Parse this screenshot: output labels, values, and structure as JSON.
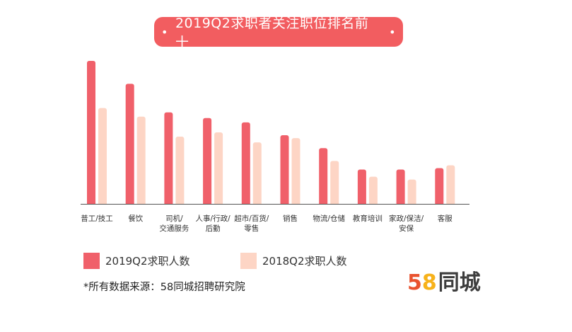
{
  "chart_data": {
    "type": "bar",
    "title": "2019Q2求职者关注职位排名前十",
    "categories": [
      "普工/技工",
      "餐饮",
      "司机/\n交通服务",
      "人事/行政/\n后勤",
      "超市/百货/\n零售",
      "销售",
      "物流/仓储",
      "教育培训",
      "家政/保洁/\n安保",
      "客服"
    ],
    "series": [
      {
        "name": "2019Q2求职人数",
        "color": "#f0606a",
        "values": [
          100,
          84,
          64,
          60,
          57,
          48,
          39,
          24,
          24,
          25
        ]
      },
      {
        "name": "2018Q2求职人数",
        "color": "#fdd5c5",
        "values": [
          67,
          61,
          47,
          50,
          43,
          46,
          30,
          19,
          17,
          27
        ]
      }
    ],
    "ylim": [
      0,
      100
    ],
    "grid": false,
    "legend_position": "bottom-left"
  },
  "title_dot": "•",
  "source": "*所有数据来源：58同城招聘研究院",
  "logo": {
    "digit1": "5",
    "digit2": "8",
    "text": "同城"
  },
  "colors": {
    "title_bg": "#f25d60",
    "series1": "#f0606a",
    "series2": "#fdd5c5",
    "axis": "#555555"
  }
}
